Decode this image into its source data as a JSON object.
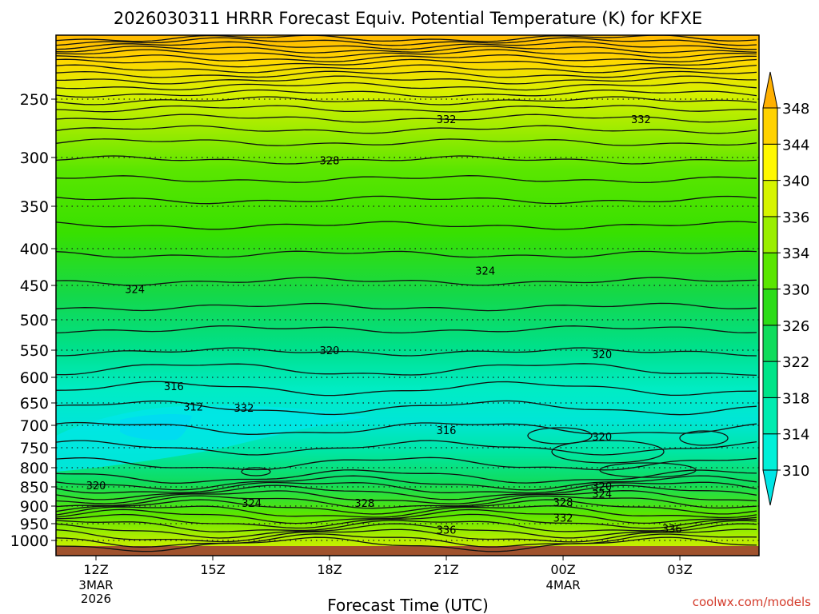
{
  "chart_data": {
    "type": "heatmap",
    "title": "2026030311 HRRR Forecast Equiv. Potential Temperature (K) for KFXE",
    "xlabel": "Forecast Time (UTC)",
    "ylabel": "",
    "credit": "coolwx.com/models",
    "x_ticks": [
      {
        "hour": 0,
        "label": "12Z",
        "sub1": "3MAR",
        "sub2": "2026"
      },
      {
        "hour": 3,
        "label": "15Z",
        "sub1": "",
        "sub2": ""
      },
      {
        "hour": 6,
        "label": "18Z",
        "sub1": "",
        "sub2": ""
      },
      {
        "hour": 9,
        "label": "21Z",
        "sub1": "",
        "sub2": ""
      },
      {
        "hour": 12,
        "label": "00Z",
        "sub1": "4MAR",
        "sub2": ""
      },
      {
        "hour": 15,
        "label": "03Z",
        "sub1": "",
        "sub2": ""
      }
    ],
    "y_ticks": [
      "250",
      "300",
      "350",
      "400",
      "450",
      "500",
      "550",
      "600",
      "650",
      "700",
      "750",
      "800",
      "850",
      "900",
      "950",
      "1000"
    ],
    "colorbar": {
      "levels": [
        "310",
        "314",
        "318",
        "322",
        "326",
        "330",
        "334",
        "336",
        "340",
        "344",
        "348"
      ],
      "colors": [
        "#00e6e6",
        "#00f0d8",
        "#00ecb0",
        "#00e488",
        "#10dc5c",
        "#2cdc18",
        "#5ae600",
        "#9aee00",
        "#d6f400",
        "#fff800",
        "#ffd200",
        "#ffb000"
      ]
    },
    "contour_labels": [
      {
        "text": "332",
        "hour": 3.8,
        "p": 661
      },
      {
        "text": "336",
        "hour": 9.0,
        "p": 968
      },
      {
        "text": "336",
        "hour": 14.8,
        "p": 964
      },
      {
        "text": "328",
        "hour": 6.9,
        "p": 892
      },
      {
        "text": "328",
        "hour": 12.0,
        "p": 890
      },
      {
        "text": "332",
        "hour": 12.0,
        "p": 933
      },
      {
        "text": "324",
        "hour": 4.0,
        "p": 892
      },
      {
        "text": "324",
        "hour": 13.0,
        "p": 868
      },
      {
        "text": "320",
        "hour": 0.0,
        "p": 846
      },
      {
        "text": "320",
        "hour": 13.0,
        "p": 848
      },
      {
        "text": "320",
        "hour": 13.0,
        "p": 725
      },
      {
        "text": "316",
        "hour": 9.0,
        "p": 711
      },
      {
        "text": "316",
        "hour": 2.0,
        "p": 617
      },
      {
        "text": "312",
        "hour": 2.5,
        "p": 658
      },
      {
        "text": "320",
        "hour": 6.0,
        "p": 550
      },
      {
        "text": "320",
        "hour": 13.0,
        "p": 557
      },
      {
        "text": "324",
        "hour": 1.0,
        "p": 455
      },
      {
        "text": "324",
        "hour": 10.0,
        "p": 430
      },
      {
        "text": "328",
        "hour": 6.0,
        "p": 303
      },
      {
        "text": "332",
        "hour": 9.0,
        "p": 267
      },
      {
        "text": "332",
        "hour": 14.0,
        "p": 267
      }
    ]
  }
}
